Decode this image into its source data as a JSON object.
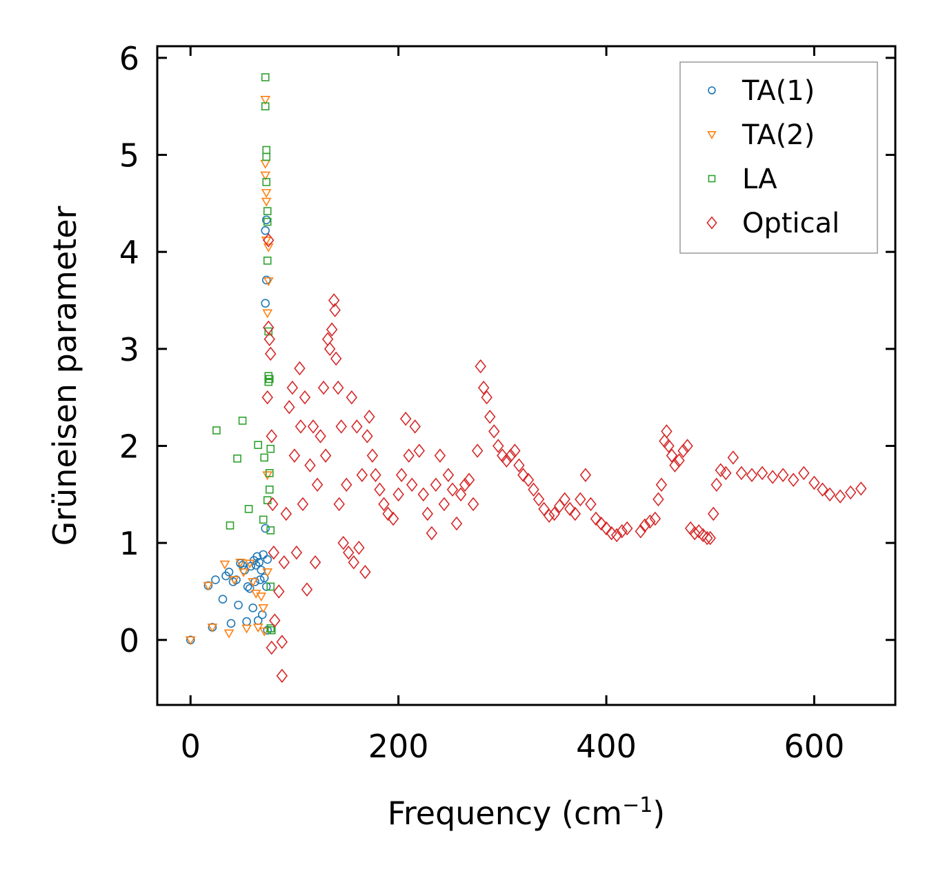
{
  "chart_data": {
    "type": "scatter",
    "xlabel": "Frequency (cm",
    "xlabel_sup": "−1",
    "xlabel_close": ")",
    "ylabel": "Grüneisen parameter",
    "xlim": [
      -32,
      678
    ],
    "ylim": [
      -0.67,
      6.12
    ],
    "xticks": [
      0,
      200,
      400,
      600
    ],
    "yticks": [
      0,
      1,
      2,
      3,
      4,
      5,
      6
    ],
    "legend_position": "top-right",
    "grid": false,
    "series": [
      {
        "name": "TA(1)",
        "marker": "circle",
        "color": "#1f77b4",
        "points": [
          [
            0,
            0
          ],
          [
            17,
            0.56
          ],
          [
            21,
            0.13
          ],
          [
            24,
            0.62
          ],
          [
            31,
            0.42
          ],
          [
            34,
            0.66
          ],
          [
            37,
            0.7
          ],
          [
            39,
            0.17
          ],
          [
            41,
            0.6
          ],
          [
            44,
            0.62
          ],
          [
            46,
            0.36
          ],
          [
            48,
            0.79
          ],
          [
            50,
            0.77
          ],
          [
            52,
            0.72
          ],
          [
            54,
            0.19
          ],
          [
            55,
            0.55
          ],
          [
            57,
            0.53
          ],
          [
            58,
            0.76
          ],
          [
            60,
            0.33
          ],
          [
            61,
            0.82
          ],
          [
            62,
            0.6
          ],
          [
            63,
            0.77
          ],
          [
            64,
            0.86
          ],
          [
            65,
            0.2
          ],
          [
            66,
            0.8
          ],
          [
            67,
            0.62
          ],
          [
            68,
            0.72
          ],
          [
            69,
            0.26
          ],
          [
            70,
            0.88
          ],
          [
            71,
            0.64
          ],
          [
            72,
            4.22
          ],
          [
            72,
            3.47
          ],
          [
            72,
            1.15
          ],
          [
            73,
            4.33
          ],
          [
            73,
            3.71
          ],
          [
            73,
            0.55
          ],
          [
            74,
            0.83
          ],
          [
            74,
            0.1
          ]
        ]
      },
      {
        "name": "TA(2)",
        "marker": "triangle-down",
        "color": "#ff7f0e",
        "points": [
          [
            0,
            0
          ],
          [
            17,
            0.56
          ],
          [
            21,
            0.13
          ],
          [
            33,
            0.78
          ],
          [
            37,
            0.07
          ],
          [
            42,
            0.62
          ],
          [
            48,
            0.8
          ],
          [
            51,
            0.7
          ],
          [
            54,
            0.12
          ],
          [
            57,
            0.79
          ],
          [
            60,
            0.6
          ],
          [
            63,
            0.48
          ],
          [
            65,
            0.13
          ],
          [
            68,
            0.45
          ],
          [
            70,
            0.33
          ],
          [
            71,
            0.09
          ],
          [
            72,
            5.57
          ],
          [
            72,
            4.91
          ],
          [
            72,
            4.79
          ],
          [
            73,
            4.61
          ],
          [
            73,
            4.52
          ],
          [
            73,
            4.12
          ],
          [
            74,
            3.37
          ],
          [
            74,
            1.7
          ],
          [
            74,
            0.7
          ],
          [
            75,
            3.7
          ],
          [
            75,
            4.05
          ]
        ]
      },
      {
        "name": "LA",
        "marker": "square",
        "color": "#2ca02c",
        "points": [
          [
            25,
            2.16
          ],
          [
            38,
            1.18
          ],
          [
            45,
            1.87
          ],
          [
            50,
            2.26
          ],
          [
            56,
            1.35
          ],
          [
            65,
            2.01
          ],
          [
            70,
            1.24
          ],
          [
            71,
            1.88
          ],
          [
            72,
            5.8
          ],
          [
            72,
            5.5
          ],
          [
            73,
            5.05
          ],
          [
            73,
            4.98
          ],
          [
            73,
            4.72
          ],
          [
            74,
            4.42
          ],
          [
            74,
            4.31
          ],
          [
            74,
            3.91
          ],
          [
            74,
            1.44
          ],
          [
            75,
            3.18
          ],
          [
            75,
            2.72
          ],
          [
            75,
            2.66
          ],
          [
            76,
            2.69
          ],
          [
            76,
            1.72
          ],
          [
            76,
            1.55
          ],
          [
            77,
            1.97
          ],
          [
            77,
            1.13
          ],
          [
            77,
            0.55
          ],
          [
            77,
            0.12
          ],
          [
            78,
            0.1
          ]
        ]
      },
      {
        "name": "Optical",
        "marker": "diamond",
        "color": "#d62728",
        "points": [
          [
            74,
            2.5
          ],
          [
            75,
            4.12
          ],
          [
            75,
            3.22
          ],
          [
            76,
            3.1
          ],
          [
            77,
            2.95
          ],
          [
            78,
            2.1
          ],
          [
            79,
            1.4
          ],
          [
            80,
            0.9
          ],
          [
            81,
            0.2
          ],
          [
            78,
            -0.08
          ],
          [
            85,
            0.5
          ],
          [
            88,
            -0.02
          ],
          [
            88,
            -0.37
          ],
          [
            90,
            0.8
          ],
          [
            92,
            1.3
          ],
          [
            95,
            2.4
          ],
          [
            98,
            2.6
          ],
          [
            100,
            1.9
          ],
          [
            102,
            0.9
          ],
          [
            105,
            2.8
          ],
          [
            106,
            2.2
          ],
          [
            108,
            1.4
          ],
          [
            110,
            2.5
          ],
          [
            112,
            0.52
          ],
          [
            115,
            1.8
          ],
          [
            118,
            2.2
          ],
          [
            120,
            0.8
          ],
          [
            122,
            1.6
          ],
          [
            125,
            2.1
          ],
          [
            128,
            2.6
          ],
          [
            130,
            1.9
          ],
          [
            132,
            3.1
          ],
          [
            134,
            3.0
          ],
          [
            136,
            3.2
          ],
          [
            138,
            3.5
          ],
          [
            139,
            3.4
          ],
          [
            140,
            2.9
          ],
          [
            142,
            2.6
          ],
          [
            143,
            1.4
          ],
          [
            145,
            2.2
          ],
          [
            147,
            1.0
          ],
          [
            150,
            1.6
          ],
          [
            152,
            0.9
          ],
          [
            155,
            2.5
          ],
          [
            157,
            0.8
          ],
          [
            160,
            2.2
          ],
          [
            162,
            0.95
          ],
          [
            165,
            1.7
          ],
          [
            168,
            0.7
          ],
          [
            170,
            2.1
          ],
          [
            172,
            2.3
          ],
          [
            175,
            1.9
          ],
          [
            178,
            1.7
          ],
          [
            182,
            1.55
          ],
          [
            186,
            1.4
          ],
          [
            190,
            1.3
          ],
          [
            195,
            1.25
          ],
          [
            200,
            1.5
          ],
          [
            203,
            1.7
          ],
          [
            207,
            2.28
          ],
          [
            210,
            1.9
          ],
          [
            213,
            1.6
          ],
          [
            216,
            2.2
          ],
          [
            220,
            1.95
          ],
          [
            224,
            1.5
          ],
          [
            228,
            1.3
          ],
          [
            232,
            1.1
          ],
          [
            236,
            1.6
          ],
          [
            240,
            1.9
          ],
          [
            244,
            1.4
          ],
          [
            248,
            1.7
          ],
          [
            252,
            1.55
          ],
          [
            256,
            1.2
          ],
          [
            260,
            1.5
          ],
          [
            264,
            1.6
          ],
          [
            268,
            1.65
          ],
          [
            272,
            1.4
          ],
          [
            276,
            1.95
          ],
          [
            279,
            2.82
          ],
          [
            282,
            2.6
          ],
          [
            285,
            2.5
          ],
          [
            288,
            2.3
          ],
          [
            292,
            2.15
          ],
          [
            296,
            2.0
          ],
          [
            300,
            1.9
          ],
          [
            304,
            1.85
          ],
          [
            308,
            1.9
          ],
          [
            312,
            1.95
          ],
          [
            316,
            1.8
          ],
          [
            320,
            1.7
          ],
          [
            325,
            1.65
          ],
          [
            330,
            1.55
          ],
          [
            335,
            1.45
          ],
          [
            340,
            1.35
          ],
          [
            345,
            1.28
          ],
          [
            350,
            1.3
          ],
          [
            355,
            1.38
          ],
          [
            360,
            1.45
          ],
          [
            365,
            1.35
          ],
          [
            370,
            1.3
          ],
          [
            375,
            1.45
          ],
          [
            380,
            1.7
          ],
          [
            385,
            1.4
          ],
          [
            390,
            1.25
          ],
          [
            395,
            1.2
          ],
          [
            400,
            1.15
          ],
          [
            405,
            1.1
          ],
          [
            410,
            1.08
          ],
          [
            415,
            1.12
          ],
          [
            420,
            1.15
          ],
          [
            433,
            1.12
          ],
          [
            437,
            1.18
          ],
          [
            442,
            1.22
          ],
          [
            447,
            1.25
          ],
          [
            450,
            1.45
          ],
          [
            453,
            1.6
          ],
          [
            456,
            2.05
          ],
          [
            458,
            2.15
          ],
          [
            460,
            2.0
          ],
          [
            463,
            1.9
          ],
          [
            466,
            1.8
          ],
          [
            470,
            1.85
          ],
          [
            474,
            1.95
          ],
          [
            478,
            2.0
          ],
          [
            481,
            1.15
          ],
          [
            485,
            1.1
          ],
          [
            489,
            1.12
          ],
          [
            493,
            1.08
          ],
          [
            497,
            1.05
          ],
          [
            500,
            1.05
          ],
          [
            503,
            1.3
          ],
          [
            506,
            1.6
          ],
          [
            510,
            1.75
          ],
          [
            515,
            1.72
          ],
          [
            522,
            1.88
          ],
          [
            530,
            1.72
          ],
          [
            540,
            1.7
          ],
          [
            550,
            1.72
          ],
          [
            560,
            1.68
          ],
          [
            570,
            1.7
          ],
          [
            580,
            1.65
          ],
          [
            590,
            1.72
          ],
          [
            600,
            1.62
          ],
          [
            608,
            1.55
          ],
          [
            615,
            1.5
          ],
          [
            625,
            1.48
          ],
          [
            635,
            1.52
          ],
          [
            645,
            1.56
          ]
        ]
      }
    ]
  }
}
